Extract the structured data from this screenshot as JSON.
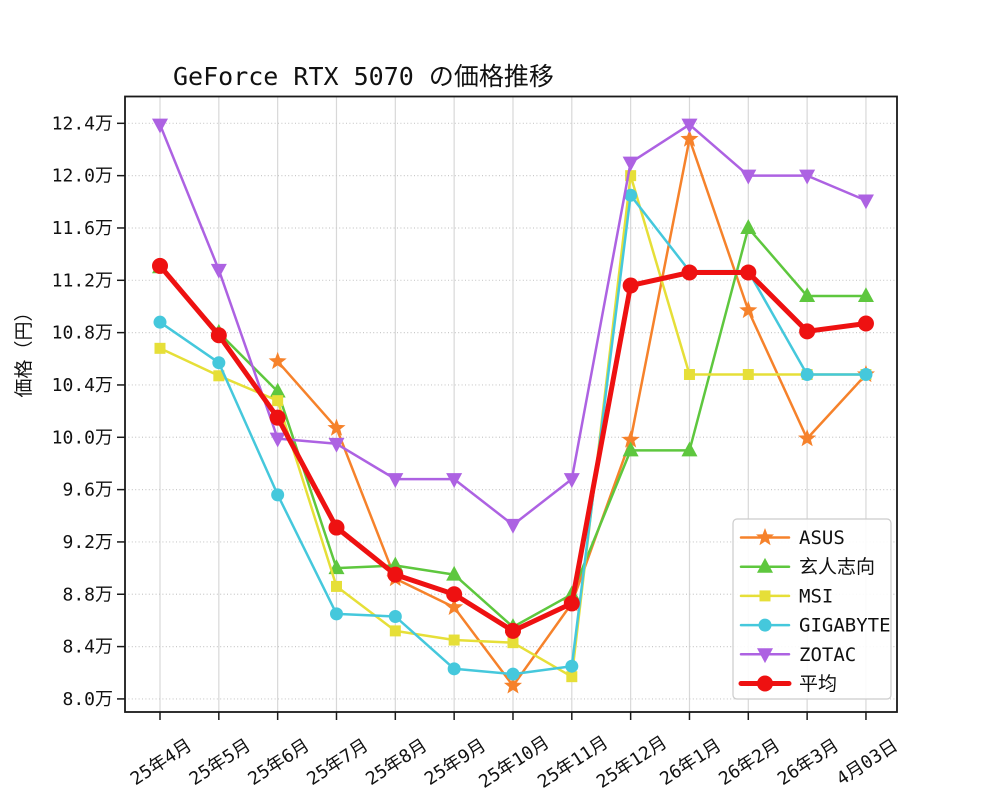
{
  "chart_data": {
    "type": "line",
    "title": "GeForce RTX 5070 の価格推移",
    "ylabel": "価格（円）",
    "xlabel": "",
    "unit": "万円",
    "grid": true,
    "legend_position": "lower right",
    "categories": [
      "25年4月",
      "25年5月",
      "25年6月",
      "25年7月",
      "25年8月",
      "25年9月",
      "25年10月",
      "25年11月",
      "25年12月",
      "26年1月",
      "26年2月",
      "26年3月",
      "4月03日"
    ],
    "y_ticks": [
      {
        "value": 8.0,
        "label": "8.0万"
      },
      {
        "value": 8.4,
        "label": "8.4万"
      },
      {
        "value": 8.8,
        "label": "8.8万"
      },
      {
        "value": 9.2,
        "label": "9.2万"
      },
      {
        "value": 9.6,
        "label": "9.6万"
      },
      {
        "value": 10.0,
        "label": "10.0万"
      },
      {
        "value": 10.4,
        "label": "10.4万"
      },
      {
        "value": 10.8,
        "label": "10.8万"
      },
      {
        "value": 11.2,
        "label": "11.2万"
      },
      {
        "value": 11.6,
        "label": "11.6万"
      },
      {
        "value": 12.0,
        "label": "12.0万"
      },
      {
        "value": 12.4,
        "label": "12.4万"
      }
    ],
    "ylim": [
      7.9,
      12.605
    ],
    "series": [
      {
        "name": "ASUS",
        "color": "#f6822b",
        "marker": "star",
        "line_width": 2.5,
        "marker_size": 9.5,
        "values": [
          null,
          null,
          10.58,
          10.07,
          8.92,
          8.7,
          8.1,
          8.73,
          9.98,
          12.28,
          10.97,
          9.99,
          10.48
        ]
      },
      {
        "name": "玄人志向",
        "color": "#5ec73e",
        "marker": "triangle-up",
        "line_width": 2.5,
        "marker_size": 8,
        "values": [
          11.3,
          10.8,
          10.35,
          9.0,
          9.02,
          8.95,
          8.55,
          8.8,
          9.9,
          9.9,
          11.6,
          11.08,
          11.08
        ]
      },
      {
        "name": "MSI",
        "color": "#e6df38",
        "marker": "square",
        "line_width": 2.5,
        "marker_size": 5.5,
        "values": [
          10.68,
          10.47,
          10.28,
          8.86,
          8.52,
          8.45,
          8.43,
          8.17,
          12.0,
          10.48,
          10.48,
          10.48,
          10.48
        ]
      },
      {
        "name": "GIGABYTE",
        "color": "#45c8dc",
        "marker": "circle",
        "line_width": 2.5,
        "marker_size": 6.5,
        "values": [
          10.88,
          10.57,
          9.56,
          8.65,
          8.63,
          8.23,
          8.19,
          8.25,
          11.85,
          11.27,
          11.27,
          10.48,
          10.48
        ]
      },
      {
        "name": "ZOTAC",
        "color": "#ad62e2",
        "marker": "triangle-down",
        "line_width": 2.5,
        "marker_size": 8,
        "values": [
          12.39,
          11.28,
          9.99,
          9.95,
          9.68,
          9.68,
          9.33,
          9.68,
          12.1,
          12.39,
          12.0,
          12.0,
          11.81
        ]
      },
      {
        "name": "平均",
        "color": "#ee1111",
        "marker": "circle",
        "line_width": 5,
        "marker_size": 8,
        "values": [
          11.31,
          10.78,
          10.15,
          9.31,
          8.95,
          8.8,
          8.52,
          8.73,
          11.16,
          11.26,
          11.26,
          10.81,
          10.87
        ]
      }
    ],
    "colors": {
      "grid_vertical": "#d8d8d8",
      "grid_horizontal": "#c9c9c9",
      "spine": "#1a1a1a",
      "legend_border": "#cccccc",
      "background": "#ffffff"
    }
  }
}
